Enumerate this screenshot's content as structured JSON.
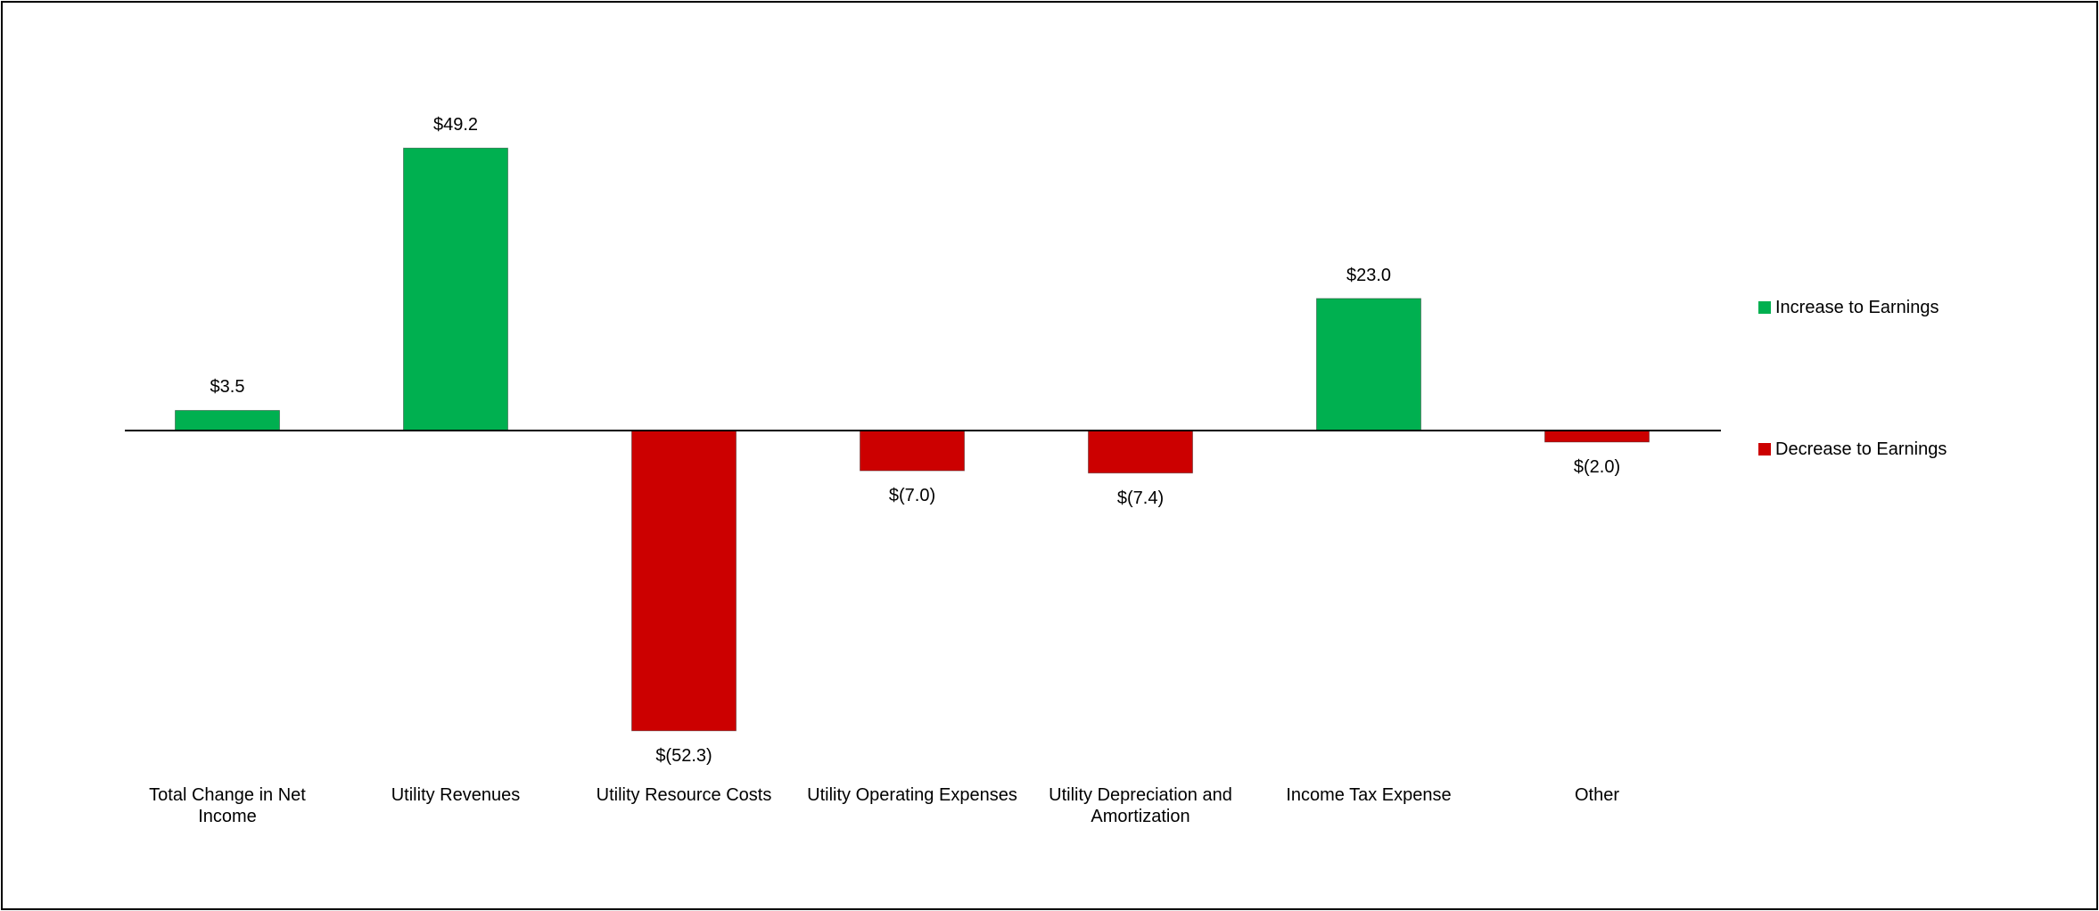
{
  "chart_data": {
    "type": "bar",
    "categories": [
      "Total Change in Net Income",
      "Utility Revenues",
      "Utility Resource Costs",
      "Utility Operating Expenses",
      "Utility Depreciation and Amortization",
      "Income Tax Expense",
      "Other"
    ],
    "series": [
      {
        "name": "Increase to Earnings",
        "color": "#00b050",
        "values": [
          3.5,
          49.2,
          null,
          null,
          null,
          23.0,
          null
        ],
        "value_labels": [
          "$3.5",
          "$49.2",
          null,
          null,
          null,
          "$23.0",
          null
        ]
      },
      {
        "name": "Decrease to Earnings",
        "color": "#cc0000",
        "values": [
          null,
          null,
          -52.3,
          -7.0,
          -7.4,
          null,
          -2.0
        ],
        "value_labels": [
          null,
          null,
          "$(52.3)",
          "$(7.0)",
          "$(7.4)",
          null,
          "$(2.0)"
        ]
      }
    ],
    "legend": "right"
  }
}
